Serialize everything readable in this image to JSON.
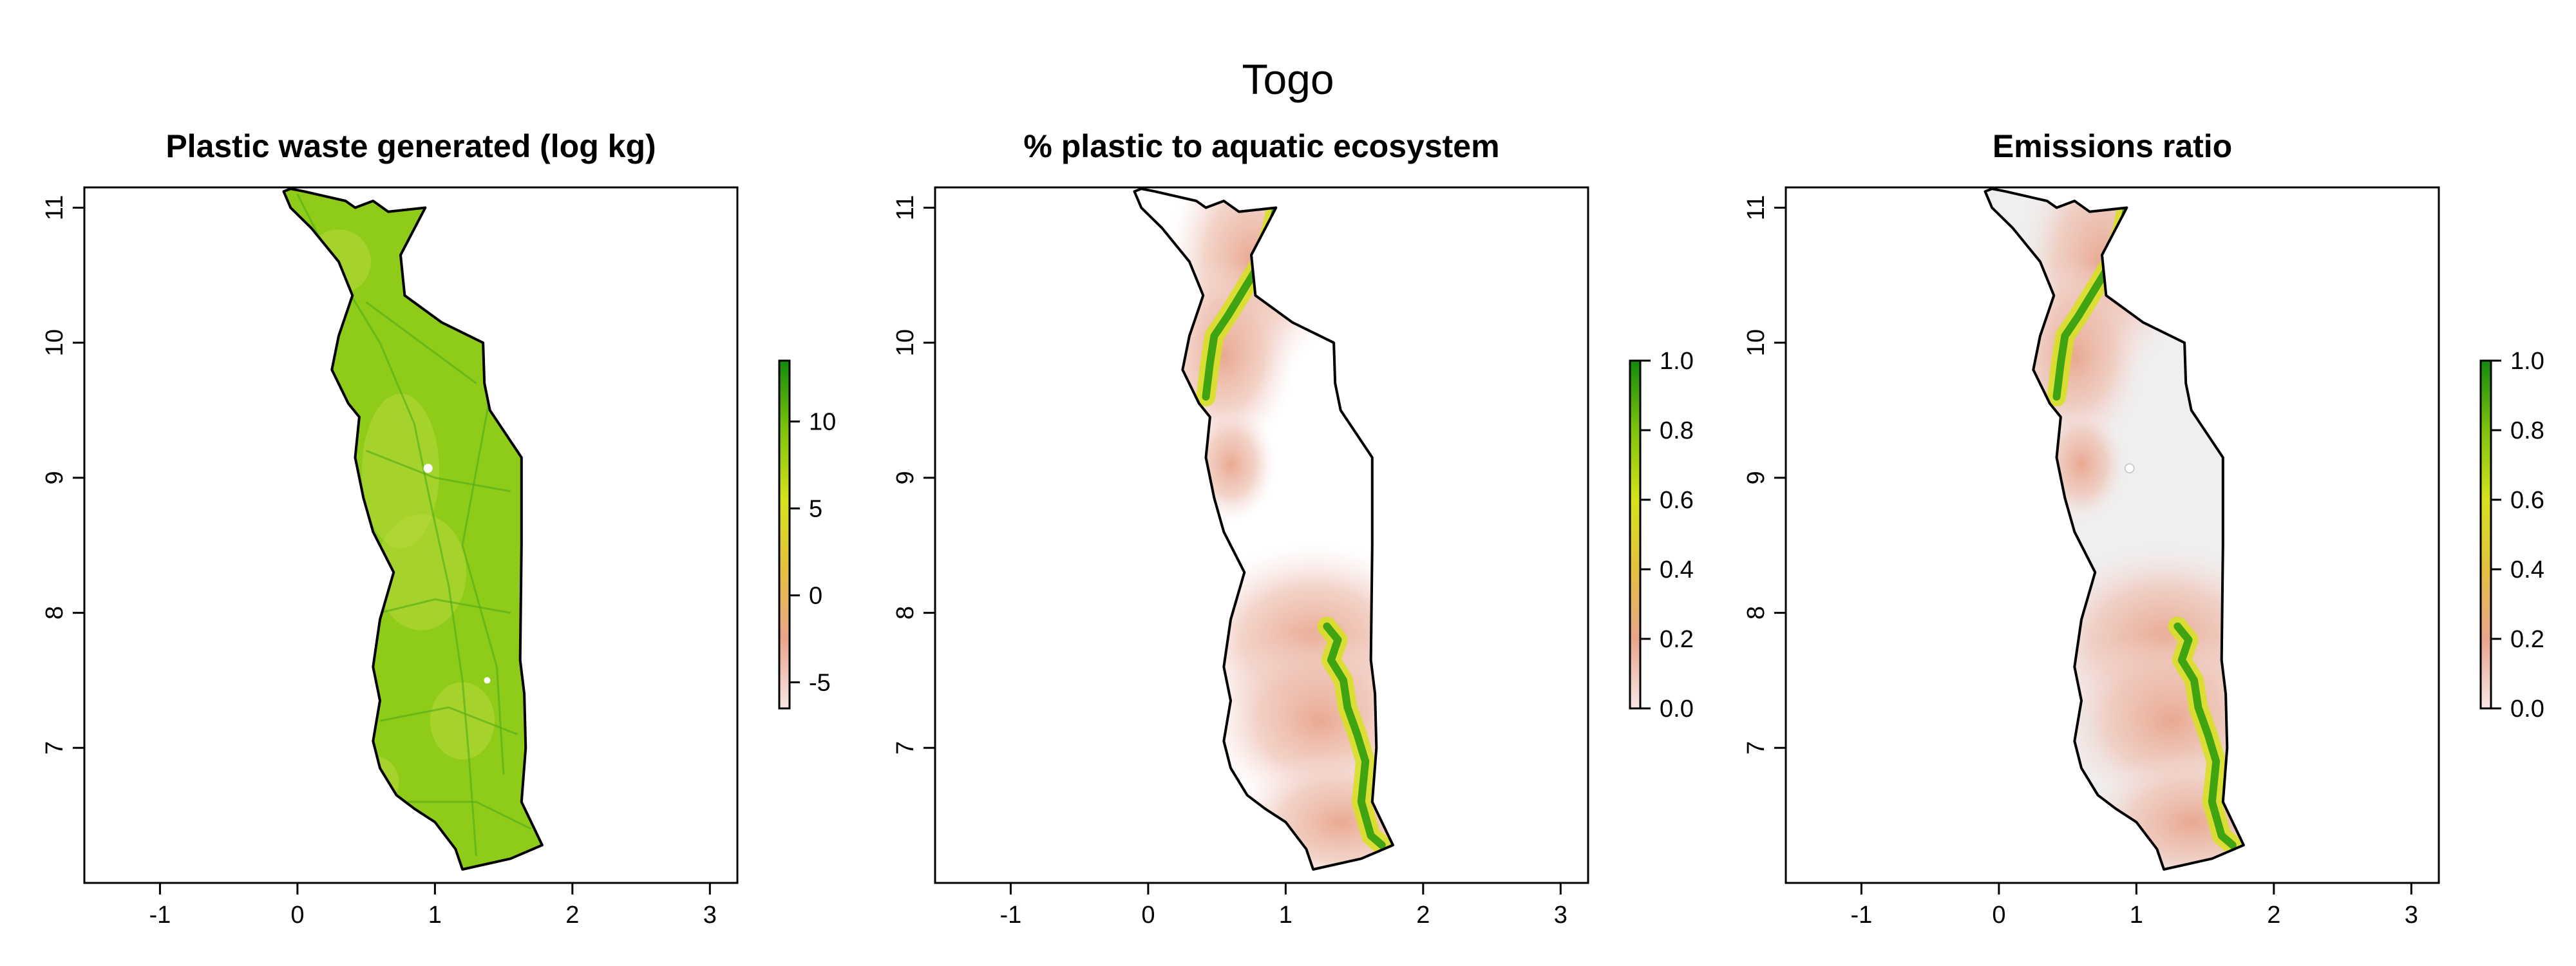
{
  "figure": {
    "title": "Togo"
  },
  "panels": [
    {
      "title": "Plastic waste generated (log kg)",
      "x_ticks": [
        "-1",
        "0",
        "1",
        "2",
        "3"
      ],
      "y_ticks": [
        "7",
        "8",
        "9",
        "10",
        "11"
      ],
      "colorbar": {
        "ticks": [
          "-5",
          "0",
          "5",
          "10"
        ],
        "range": [
          -6.5,
          13.5
        ],
        "colors": [
          "#f7e6e6",
          "#e9a58c",
          "#e3c03e",
          "#d6e21d",
          "#7fc40d",
          "#128a0d"
        ]
      },
      "fill": "waste"
    },
    {
      "title": "% plastic to aquatic ecosystem",
      "x_ticks": [
        "-1",
        "0",
        "1",
        "2",
        "3"
      ],
      "y_ticks": [
        "7",
        "8",
        "9",
        "10",
        "11"
      ],
      "colorbar": {
        "ticks": [
          "0.0",
          "0.2",
          "0.4",
          "0.6",
          "0.8",
          "1.0"
        ],
        "range": [
          0,
          1
        ],
        "colors": [
          "#f7e6e6",
          "#e9a58c",
          "#e3c03e",
          "#d6e21d",
          "#7fc40d",
          "#128a0d"
        ]
      },
      "fill": "aquatic"
    },
    {
      "title": "Emissions ratio",
      "x_ticks": [
        "-1",
        "0",
        "1",
        "2",
        "3"
      ],
      "y_ticks": [
        "7",
        "8",
        "9",
        "10",
        "11"
      ],
      "colorbar": {
        "ticks": [
          "0.0",
          "0.2",
          "0.4",
          "0.6",
          "0.8",
          "1.0"
        ],
        "range": [
          0,
          1
        ],
        "colors": [
          "#f7e6e6",
          "#e9a58c",
          "#e3c03e",
          "#d6e21d",
          "#7fc40d",
          "#128a0d"
        ]
      },
      "fill": "emissions"
    }
  ],
  "map_extent": {
    "lon": [
      -1.55,
      3.2
    ],
    "lat": [
      6.0,
      11.15
    ]
  },
  "country_outline": [
    [
      -0.1,
      11.12
    ],
    [
      -0.05,
      11.14
    ],
    [
      0.0,
      11.13
    ],
    [
      0.05,
      11.12
    ],
    [
      0.35,
      11.05
    ],
    [
      0.42,
      11.0
    ],
    [
      0.55,
      11.05
    ],
    [
      0.66,
      10.97
    ],
    [
      0.93,
      11.0
    ],
    [
      0.75,
      10.65
    ],
    [
      0.78,
      10.35
    ],
    [
      1.05,
      10.15
    ],
    [
      1.35,
      10.0
    ],
    [
      1.36,
      9.7
    ],
    [
      1.4,
      9.5
    ],
    [
      1.63,
      9.15
    ],
    [
      1.63,
      8.5
    ],
    [
      1.62,
      7.65
    ],
    [
      1.65,
      7.4
    ],
    [
      1.66,
      7.0
    ],
    [
      1.63,
      6.6
    ],
    [
      1.78,
      6.28
    ],
    [
      1.55,
      6.18
    ],
    [
      1.2,
      6.1
    ],
    [
      1.15,
      6.25
    ],
    [
      1.0,
      6.45
    ],
    [
      0.85,
      6.55
    ],
    [
      0.72,
      6.65
    ],
    [
      0.6,
      6.85
    ],
    [
      0.55,
      7.05
    ],
    [
      0.6,
      7.35
    ],
    [
      0.55,
      7.6
    ],
    [
      0.6,
      7.95
    ],
    [
      0.7,
      8.3
    ],
    [
      0.55,
      8.6
    ],
    [
      0.48,
      8.85
    ],
    [
      0.42,
      9.15
    ],
    [
      0.45,
      9.45
    ],
    [
      0.37,
      9.55
    ],
    [
      0.25,
      9.8
    ],
    [
      0.3,
      10.05
    ],
    [
      0.4,
      10.35
    ],
    [
      0.3,
      10.6
    ],
    [
      0.1,
      10.85
    ],
    [
      -0.05,
      11.0
    ],
    [
      -0.1,
      11.12
    ]
  ],
  "hotspots": {
    "north_river": [
      [
        0.93,
        11.0
      ],
      [
        0.9,
        10.85
      ],
      [
        0.82,
        10.6
      ],
      [
        0.7,
        10.4
      ],
      [
        0.58,
        10.2
      ],
      [
        0.48,
        10.05
      ],
      [
        0.45,
        9.85
      ],
      [
        0.42,
        9.6
      ]
    ],
    "south_river": [
      [
        1.3,
        7.9
      ],
      [
        1.38,
        7.8
      ],
      [
        1.33,
        7.65
      ],
      [
        1.42,
        7.5
      ],
      [
        1.45,
        7.3
      ],
      [
        1.52,
        7.1
      ],
      [
        1.58,
        6.9
      ],
      [
        1.55,
        6.6
      ],
      [
        1.62,
        6.35
      ],
      [
        1.7,
        6.28
      ]
    ]
  }
}
